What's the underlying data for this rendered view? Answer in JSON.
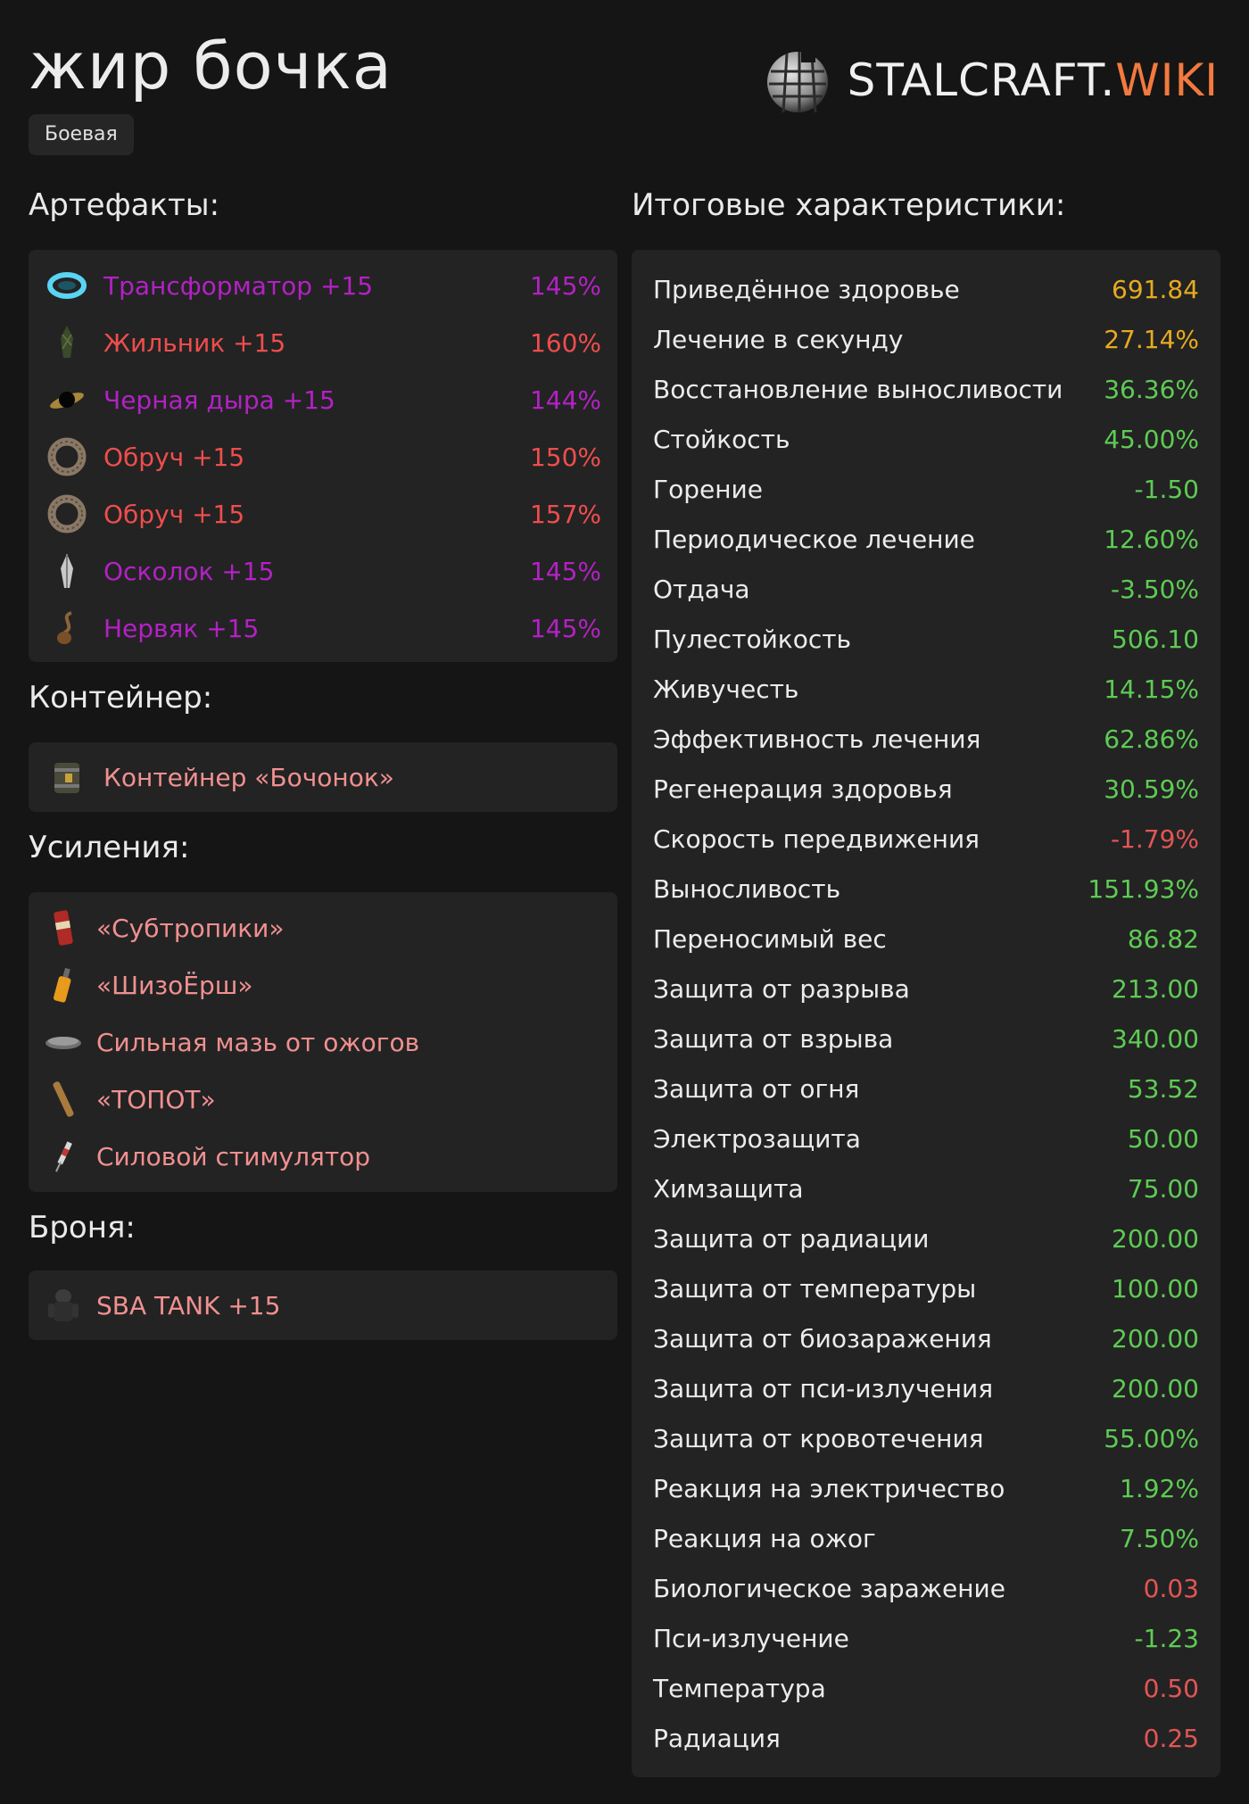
{
  "header": {
    "title": "жир бочка",
    "tag": "Боевая",
    "logo_main": "STALCRAFT.",
    "logo_accent": "WIKI"
  },
  "artifacts": {
    "heading": "Артефакты:",
    "items": [
      {
        "name": "Трансформатор +15",
        "pct": "145%",
        "color": "#b321c4",
        "icon": "transformer-icon"
      },
      {
        "name": "Жильник +15",
        "pct": "160%",
        "color": "#ef4d4d",
        "icon": "zhilnik-icon"
      },
      {
        "name": "Черная дыра +15",
        "pct": "144%",
        "color": "#b321c4",
        "icon": "black-hole-icon"
      },
      {
        "name": "Обруч +15",
        "pct": "150%",
        "color": "#ef4d4d",
        "icon": "hoop-icon"
      },
      {
        "name": "Обруч +15",
        "pct": "157%",
        "color": "#ef4d4d",
        "icon": "hoop-icon"
      },
      {
        "name": "Осколок +15",
        "pct": "145%",
        "color": "#b321c4",
        "icon": "shard-icon"
      },
      {
        "name": "Нервяк +15",
        "pct": "145%",
        "color": "#b321c4",
        "icon": "nervyak-icon"
      }
    ]
  },
  "container": {
    "heading": "Контейнер:",
    "name": "Контейнер «Бочонок»",
    "color": "#f19090",
    "icon": "barrel-container-icon"
  },
  "boosts": {
    "heading": "Усиления:",
    "items": [
      {
        "name": "«Субтропики»",
        "icon": "subtropics-can-icon"
      },
      {
        "name": "«ШизоЁрш»",
        "icon": "shizoersh-bottle-icon"
      },
      {
        "name": "Сильная мазь от ожогов",
        "icon": "burn-ointment-icon"
      },
      {
        "name": "«ТОПОТ»",
        "icon": "topot-stick-icon"
      },
      {
        "name": "Силовой стимулятор",
        "icon": "syringe-icon"
      }
    ],
    "color": "#f19090"
  },
  "armor": {
    "heading": "Броня:",
    "name": "SBA TANK +15",
    "color": "#f19090",
    "icon": "armor-icon"
  },
  "stats": {
    "heading": "Итоговые характеристики:",
    "items": [
      {
        "name": "Приведённое здоровье",
        "value": "691.84",
        "color": "#e6ab1f"
      },
      {
        "name": "Лечение в секунду",
        "value": "27.14%",
        "color": "#e6ab1f"
      },
      {
        "name": "Восстановление выносливости",
        "value": "36.36%",
        "color": "#5ecb54"
      },
      {
        "name": "Стойкость",
        "value": "45.00%",
        "color": "#5ecb54"
      },
      {
        "name": "Горение",
        "value": "-1.50",
        "color": "#5ecb54"
      },
      {
        "name": "Периодическое лечение",
        "value": "12.60%",
        "color": "#5ecb54"
      },
      {
        "name": "Отдача",
        "value": "-3.50%",
        "color": "#5ecb54"
      },
      {
        "name": "Пулестойкость",
        "value": "506.10",
        "color": "#5ecb54"
      },
      {
        "name": "Живучесть",
        "value": "14.15%",
        "color": "#5ecb54"
      },
      {
        "name": "Эффективность лечения",
        "value": "62.86%",
        "color": "#5ecb54"
      },
      {
        "name": "Регенерация здоровья",
        "value": "30.59%",
        "color": "#5ecb54"
      },
      {
        "name": "Скорость передвижения",
        "value": "-1.79%",
        "color": "#e25555"
      },
      {
        "name": "Выносливость",
        "value": "151.93%",
        "color": "#5ecb54"
      },
      {
        "name": "Переносимый вес",
        "value": "86.82",
        "color": "#5ecb54"
      },
      {
        "name": "Защита от разрыва",
        "value": "213.00",
        "color": "#5ecb54"
      },
      {
        "name": "Защита от взрыва",
        "value": "340.00",
        "color": "#5ecb54"
      },
      {
        "name": "Защита от огня",
        "value": "53.52",
        "color": "#5ecb54"
      },
      {
        "name": "Электрозащита",
        "value": "50.00",
        "color": "#5ecb54"
      },
      {
        "name": "Химзащита",
        "value": "75.00",
        "color": "#5ecb54"
      },
      {
        "name": "Защита от радиации",
        "value": "200.00",
        "color": "#5ecb54"
      },
      {
        "name": "Защита от температуры",
        "value": "100.00",
        "color": "#5ecb54"
      },
      {
        "name": "Защита от биозаражения",
        "value": "200.00",
        "color": "#5ecb54"
      },
      {
        "name": "Защита от пси-излучения",
        "value": "200.00",
        "color": "#5ecb54"
      },
      {
        "name": "Защита от кровотечения",
        "value": "55.00%",
        "color": "#5ecb54"
      },
      {
        "name": "Реакция на электричество",
        "value": "1.92%",
        "color": "#5ecb54"
      },
      {
        "name": "Реакция на ожог",
        "value": "7.50%",
        "color": "#5ecb54"
      },
      {
        "name": "Биологическое заражение",
        "value": "0.03",
        "color": "#e25555"
      },
      {
        "name": "Пси-излучение",
        "value": "-1.23",
        "color": "#5ecb54"
      },
      {
        "name": "Температура",
        "value": "0.50",
        "color": "#e25555"
      },
      {
        "name": "Радиация",
        "value": "0.25",
        "color": "#e25555"
      }
    ]
  }
}
